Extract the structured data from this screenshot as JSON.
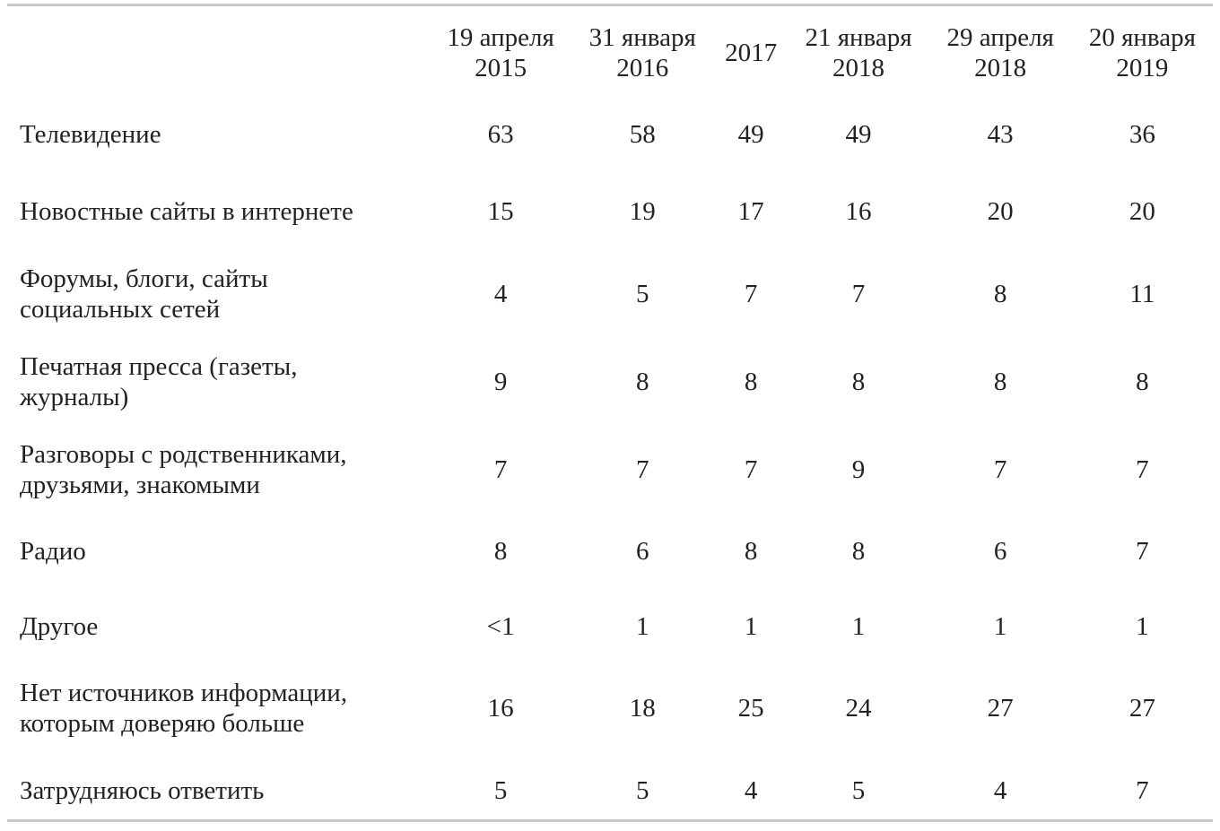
{
  "table": {
    "header_label": "",
    "columns": [
      "19 апреля\n2015",
      "31 января\n2016",
      "2017",
      "21 января\n2018",
      "29 апреля\n2018",
      "20 января\n2019"
    ],
    "rows": [
      {
        "label": "Телевидение",
        "values": [
          "63",
          "58",
          "49",
          "49",
          "43",
          "36"
        ]
      },
      {
        "label": "Новостные сайты в интернете",
        "values": [
          "15",
          "19",
          "17",
          "16",
          "20",
          "20"
        ]
      },
      {
        "label": "Форумы, блоги, сайты\nсоциальных сетей",
        "values": [
          "4",
          "5",
          "7",
          "7",
          "8",
          "11"
        ]
      },
      {
        "label": "Печатная пресса (газеты,\nжурналы)",
        "values": [
          "9",
          "8",
          "8",
          "8",
          "8",
          "8"
        ]
      },
      {
        "label": "Разговоры с родственниками,\nдрузьями, знакомыми",
        "values": [
          "7",
          "7",
          "7",
          "9",
          "7",
          "7"
        ]
      },
      {
        "label": "Радио",
        "values": [
          "8",
          "6",
          "8",
          "8",
          "6",
          "7"
        ]
      },
      {
        "label": "Другое",
        "values": [
          "<1",
          "1",
          "1",
          "1",
          "1",
          "1"
        ]
      },
      {
        "label": "Нет источников информации,\nкоторым доверяю больше",
        "values": [
          "16",
          "18",
          "25",
          "24",
          "27",
          "27"
        ]
      },
      {
        "label": "Затрудняюсь ответить",
        "values": [
          "5",
          "5",
          "4",
          "5",
          "4",
          "7"
        ]
      }
    ]
  },
  "colors": {
    "text": "#222222",
    "rule": "#c9c9c9",
    "background": "#ffffff"
  }
}
